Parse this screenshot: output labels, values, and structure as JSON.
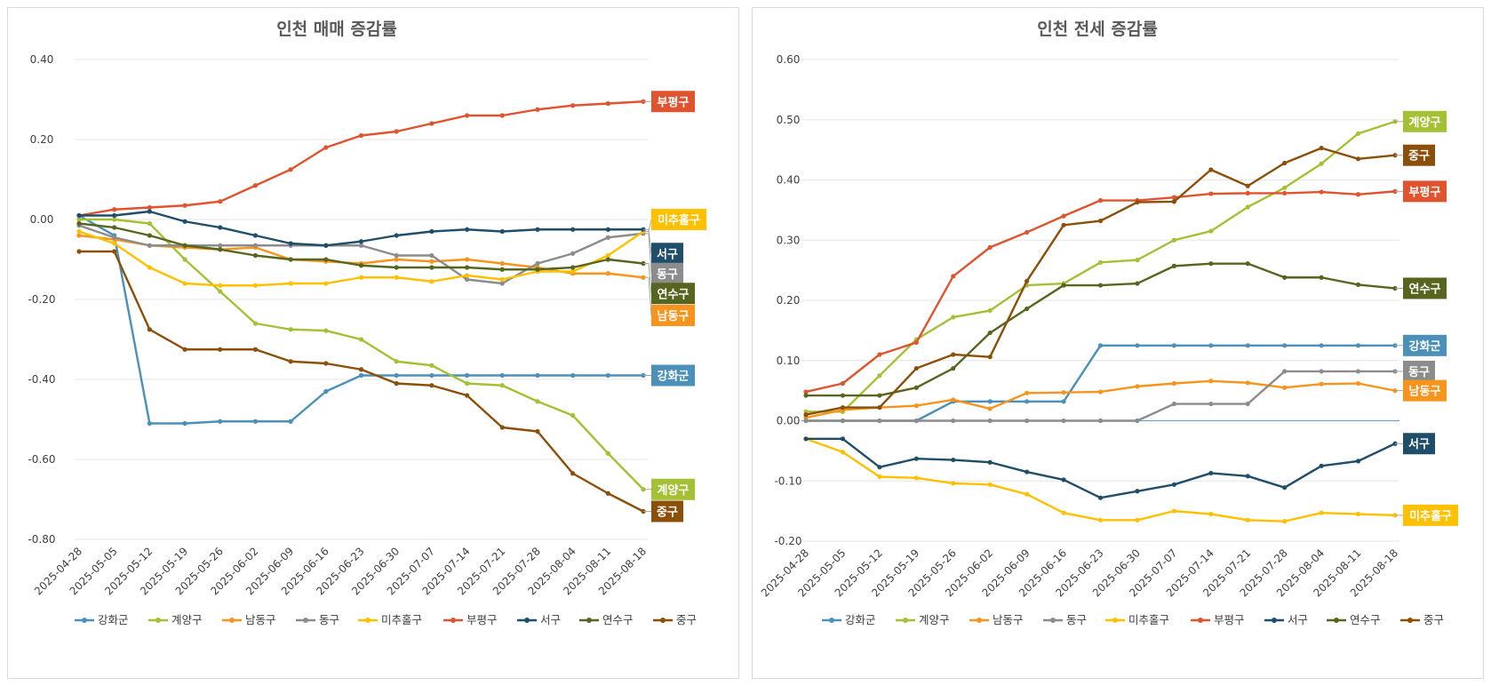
{
  "colors": {
    "강화군": "#4a90b8",
    "계양구": "#a4c034",
    "남동구": "#f7941d",
    "동구": "#8c8c8c",
    "미추홀구": "#ffc000",
    "부평구": "#e0532f",
    "서구": "#1f4e6b",
    "연수구": "#56661e",
    "중구": "#8b4f0a"
  },
  "chart_data": [
    {
      "type": "line",
      "title": "인천 매매 증감률",
      "x": [
        "2025-04-28",
        "2025-05-05",
        "2025-05-12",
        "2025-05-19",
        "2025-05-26",
        "2025-06-02",
        "2025-06-09",
        "2025-06-16",
        "2025-06-23",
        "2025-06-30",
        "2025-07-07",
        "2025-07-14",
        "2025-07-21",
        "2025-07-28",
        "2025-08-04",
        "2025-08-11",
        "2025-08-18"
      ],
      "ylim": [
        -0.8,
        0.4
      ],
      "yticks": [
        "0.40",
        "0.20",
        "0.00",
        "-0.20",
        "-0.40",
        "-0.60",
        "-0.80"
      ],
      "ytick_values": [
        0.4,
        0.2,
        0.0,
        -0.2,
        -0.4,
        -0.6,
        -0.8
      ],
      "legend_position": "bottom",
      "series": [
        {
          "name": "강화군",
          "values": [
            0.01,
            -0.04,
            -0.51,
            -0.51,
            -0.505,
            -0.505,
            -0.505,
            -0.43,
            -0.39,
            -0.39,
            -0.39,
            -0.39,
            -0.39,
            -0.39,
            -0.39,
            -0.39,
            -0.39
          ]
        },
        {
          "name": "계양구",
          "values": [
            0.0,
            0.0,
            -0.01,
            -0.1,
            -0.18,
            -0.26,
            -0.275,
            -0.278,
            -0.3,
            -0.355,
            -0.365,
            -0.41,
            -0.415,
            -0.455,
            -0.49,
            -0.585,
            -0.675
          ]
        },
        {
          "name": "남동구",
          "values": [
            -0.04,
            -0.05,
            -0.065,
            -0.07,
            -0.075,
            -0.07,
            -0.1,
            -0.105,
            -0.11,
            -0.1,
            -0.105,
            -0.1,
            -0.11,
            -0.12,
            -0.135,
            -0.135,
            -0.145
          ]
        },
        {
          "name": "동구",
          "values": [
            -0.015,
            -0.045,
            -0.065,
            -0.065,
            -0.065,
            -0.065,
            -0.065,
            -0.065,
            -0.065,
            -0.09,
            -0.09,
            -0.15,
            -0.16,
            -0.11,
            -0.085,
            -0.045,
            -0.035
          ]
        },
        {
          "name": "미추홀구",
          "values": [
            -0.03,
            -0.06,
            -0.12,
            -0.16,
            -0.165,
            -0.165,
            -0.16,
            -0.16,
            -0.145,
            -0.145,
            -0.155,
            -0.14,
            -0.15,
            -0.13,
            -0.13,
            -0.09,
            -0.03
          ]
        },
        {
          "name": "부평구",
          "values": [
            0.01,
            0.025,
            0.03,
            0.035,
            0.045,
            0.085,
            0.125,
            0.18,
            0.21,
            0.22,
            0.24,
            0.26,
            0.26,
            0.275,
            0.285,
            0.29,
            0.295
          ]
        },
        {
          "name": "서구",
          "values": [
            0.01,
            0.01,
            0.02,
            -0.005,
            -0.02,
            -0.04,
            -0.06,
            -0.065,
            -0.055,
            -0.04,
            -0.03,
            -0.025,
            -0.03,
            -0.025,
            -0.025,
            -0.025,
            -0.025
          ]
        },
        {
          "name": "연수구",
          "values": [
            -0.01,
            -0.02,
            -0.04,
            -0.065,
            -0.075,
            -0.09,
            -0.1,
            -0.1,
            -0.115,
            -0.12,
            -0.12,
            -0.12,
            -0.125,
            -0.125,
            -0.12,
            -0.1,
            -0.11
          ]
        },
        {
          "name": "중구",
          "values": [
            -0.08,
            -0.08,
            -0.275,
            -0.325,
            -0.325,
            -0.325,
            -0.355,
            -0.36,
            -0.375,
            -0.41,
            -0.415,
            -0.44,
            -0.52,
            -0.53,
            -0.635,
            -0.685,
            -0.73
          ]
        }
      ],
      "end_labels": [
        {
          "name": "부평구",
          "text": "부평구"
        },
        {
          "name": "미추홀구",
          "text": "미추홀구"
        },
        {
          "name": "서구",
          "text": "서구"
        },
        {
          "name": "동구",
          "text": "동구"
        },
        {
          "name": "연수구",
          "text": "연수구"
        },
        {
          "name": "남동구",
          "text": "남동구"
        },
        {
          "name": "강화군",
          "text": "강화군"
        },
        {
          "name": "계양구",
          "text": "계양구"
        },
        {
          "name": "중구",
          "text": "중구"
        }
      ]
    },
    {
      "type": "line",
      "title": "인천 전세 증감률",
      "x": [
        "2025-04-28",
        "2025-05-05",
        "2025-05-12",
        "2025-05-19",
        "2025-05-26",
        "2025-06-02",
        "2025-06-09",
        "2025-06-16",
        "2025-06-23",
        "2025-06-30",
        "2025-07-07",
        "2025-07-14",
        "2025-07-21",
        "2025-07-28",
        "2025-08-04",
        "2025-08-11",
        "2025-08-18"
      ],
      "ylim": [
        -0.2,
        0.6
      ],
      "yticks": [
        "0.60",
        "0.50",
        "0.40",
        "0.30",
        "0.20",
        "0.10",
        "0.00",
        "-0.10",
        "-0.20"
      ],
      "ytick_values": [
        0.6,
        0.5,
        0.4,
        0.3,
        0.2,
        0.1,
        0.0,
        -0.1,
        -0.2
      ],
      "legend_position": "bottom",
      "series": [
        {
          "name": "강화군",
          "values": [
            0.0,
            0.0,
            0.0,
            0.0,
            0.032,
            0.032,
            0.032,
            0.032,
            0.125,
            0.125,
            0.125,
            0.125,
            0.125,
            0.125,
            0.125,
            0.125,
            0.125
          ]
        },
        {
          "name": "계양구",
          "values": [
            0.015,
            0.015,
            0.075,
            0.135,
            0.172,
            0.183,
            0.225,
            0.228,
            0.263,
            0.267,
            0.3,
            0.315,
            0.355,
            0.387,
            0.427,
            0.477,
            0.497
          ]
        },
        {
          "name": "남동구",
          "values": [
            0.005,
            0.018,
            0.022,
            0.025,
            0.035,
            0.02,
            0.046,
            0.047,
            0.048,
            0.057,
            0.062,
            0.066,
            0.063,
            0.055,
            0.061,
            0.062,
            0.05
          ]
        },
        {
          "name": "동구",
          "values": [
            0.0,
            0.0,
            0.0,
            0.0,
            0.0,
            0.0,
            0.0,
            0.0,
            0.0,
            0.0,
            0.028,
            0.028,
            0.028,
            0.082,
            0.082,
            0.082,
            0.082
          ]
        },
        {
          "name": "미추홀구",
          "values": [
            -0.03,
            -0.052,
            -0.093,
            -0.095,
            -0.104,
            -0.106,
            -0.122,
            -0.153,
            -0.165,
            -0.165,
            -0.15,
            -0.155,
            -0.165,
            -0.167,
            -0.153,
            -0.155,
            -0.157
          ]
        },
        {
          "name": "부평구",
          "values": [
            0.048,
            0.062,
            0.11,
            0.13,
            0.24,
            0.288,
            0.313,
            0.34,
            0.366,
            0.366,
            0.371,
            0.377,
            0.378,
            0.378,
            0.38,
            0.376,
            0.381
          ]
        },
        {
          "name": "서구",
          "values": [
            -0.03,
            -0.03,
            -0.077,
            -0.063,
            -0.065,
            -0.069,
            -0.085,
            -0.098,
            -0.128,
            -0.117,
            -0.106,
            -0.087,
            -0.092,
            -0.111,
            -0.075,
            -0.067,
            -0.038
          ]
        },
        {
          "name": "연수구",
          "values": [
            0.042,
            0.042,
            0.042,
            0.055,
            0.087,
            0.146,
            0.186,
            0.225,
            0.225,
            0.228,
            0.257,
            0.261,
            0.261,
            0.238,
            0.238,
            0.226,
            0.22
          ]
        },
        {
          "name": "중구",
          "values": [
            0.01,
            0.022,
            0.022,
            0.087,
            0.11,
            0.106,
            0.232,
            0.325,
            0.332,
            0.363,
            0.364,
            0.417,
            0.39,
            0.428,
            0.453,
            0.435,
            0.441
          ]
        }
      ],
      "end_labels": [
        {
          "name": "계양구",
          "text": "계양구"
        },
        {
          "name": "중구",
          "text": "중구"
        },
        {
          "name": "부평구",
          "text": "부평구"
        },
        {
          "name": "연수구",
          "text": "연수구"
        },
        {
          "name": "강화군",
          "text": "강화군"
        },
        {
          "name": "동구",
          "text": "동구"
        },
        {
          "name": "남동구",
          "text": "남동구"
        },
        {
          "name": "서구",
          "text": "서구"
        },
        {
          "name": "미추홀구",
          "text": "미추홀구"
        }
      ]
    }
  ]
}
